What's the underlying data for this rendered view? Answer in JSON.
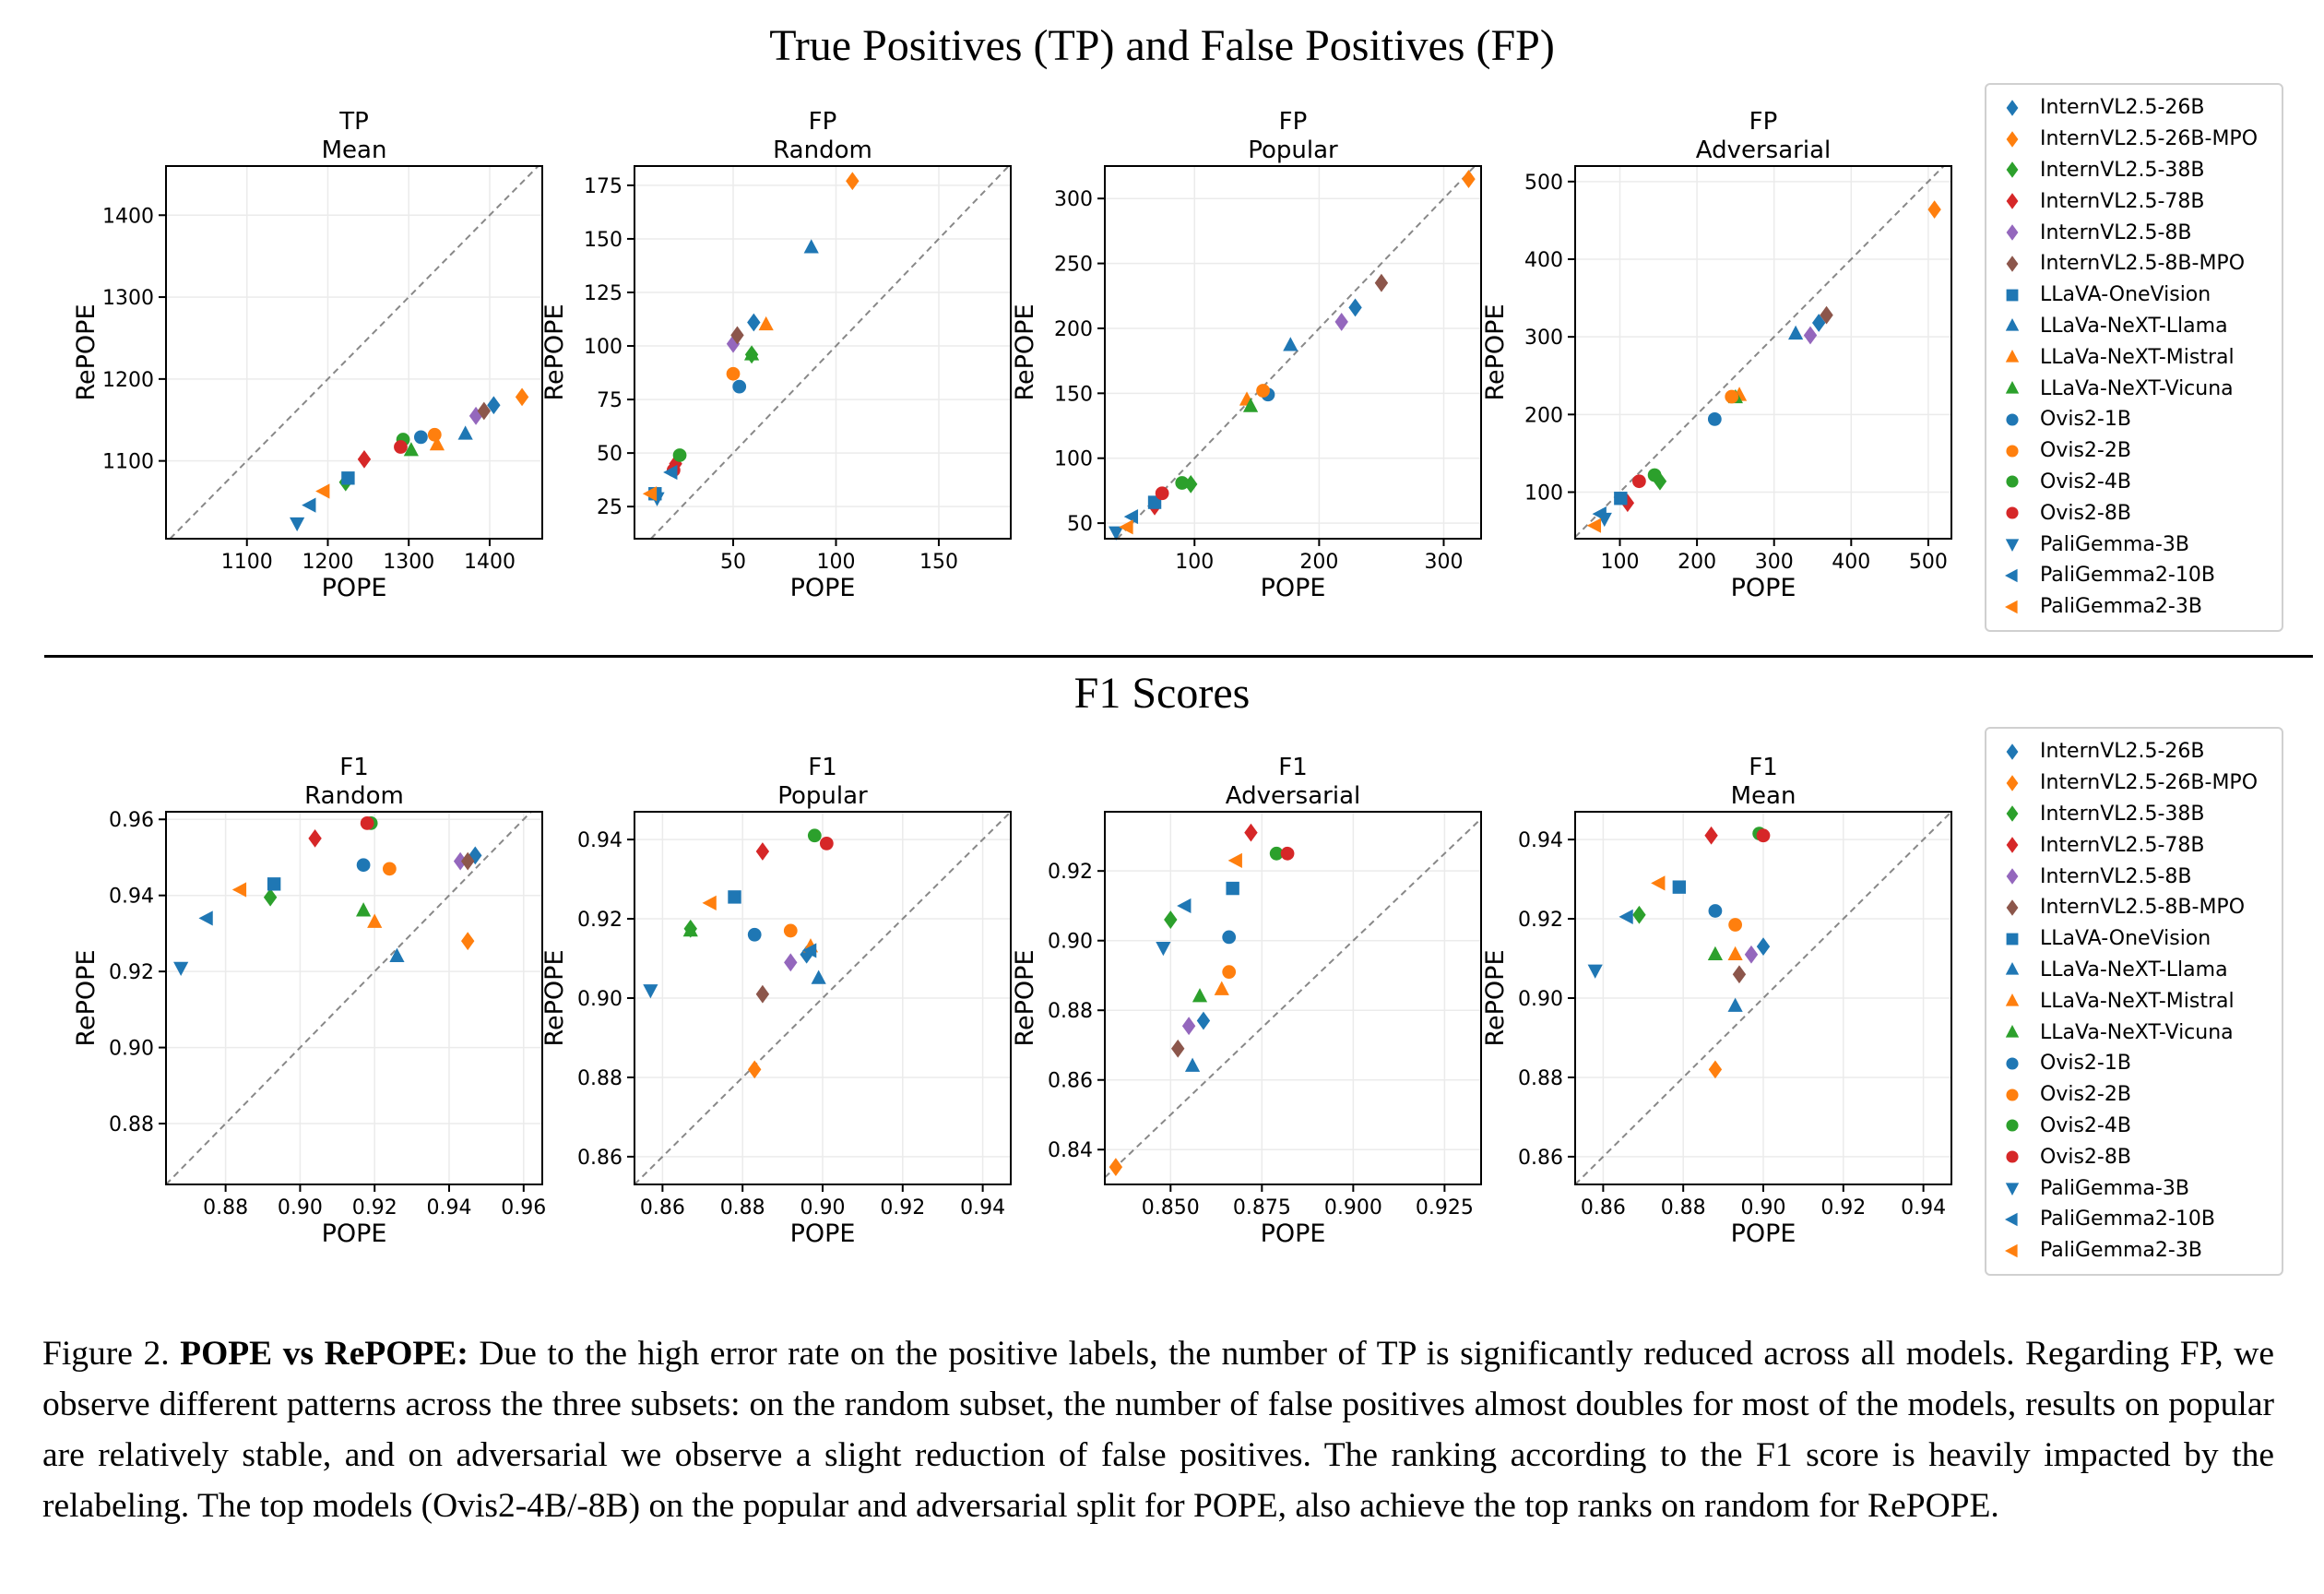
{
  "section_titles": {
    "top": "True Positives (TP) and False Positives (FP)",
    "bottom": "F1 Scores"
  },
  "caption": {
    "label": "Figure 2.",
    "bold": "POPE vs RePOPE:",
    "text": "Due to the high error rate on the positive labels, the number of TP is significantly reduced across all models. Regarding FP, we observe different patterns across the three subsets: on the random subset, the number of false positives almost doubles for most of the models, results on popular are relatively stable, and on adversarial we observe a slight reduction of false positives. The ranking according to the F1 score is heavily impacted by the relabeling. The top models (Ovis2-4B/-8B) on the popular and adversarial split for POPE, also achieve the top ranks on random for RePOPE."
  },
  "legend": [
    {
      "name": "InternVL2.5-26B",
      "color": "#1f77b4",
      "marker": "diamond"
    },
    {
      "name": "InternVL2.5-26B-MPO",
      "color": "#ff7f0e",
      "marker": "diamond"
    },
    {
      "name": "InternVL2.5-38B",
      "color": "#2ca02c",
      "marker": "diamond"
    },
    {
      "name": "InternVL2.5-78B",
      "color": "#d62728",
      "marker": "diamond"
    },
    {
      "name": "InternVL2.5-8B",
      "color": "#9467bd",
      "marker": "diamond"
    },
    {
      "name": "InternVL2.5-8B-MPO",
      "color": "#8c564b",
      "marker": "diamond"
    },
    {
      "name": "LLaVA-OneVision",
      "color": "#1f77b4",
      "marker": "square"
    },
    {
      "name": "LLaVa-NeXT-Llama",
      "color": "#1f77b4",
      "marker": "triangle-up"
    },
    {
      "name": "LLaVa-NeXT-Mistral",
      "color": "#ff7f0e",
      "marker": "triangle-up"
    },
    {
      "name": "LLaVa-NeXT-Vicuna",
      "color": "#2ca02c",
      "marker": "triangle-up"
    },
    {
      "name": "Ovis2-1B",
      "color": "#1f77b4",
      "marker": "circle"
    },
    {
      "name": "Ovis2-2B",
      "color": "#ff7f0e",
      "marker": "circle"
    },
    {
      "name": "Ovis2-4B",
      "color": "#2ca02c",
      "marker": "circle"
    },
    {
      "name": "Ovis2-8B",
      "color": "#d62728",
      "marker": "circle"
    },
    {
      "name": "PaliGemma-3B",
      "color": "#1f77b4",
      "marker": "triangle-down"
    },
    {
      "name": "PaliGemma2-10B",
      "color": "#1f77b4",
      "marker": "triangle-left"
    },
    {
      "name": "PaliGemma2-3B",
      "color": "#ff7f0e",
      "marker": "triangle-left"
    }
  ],
  "chart_data": [
    {
      "type": "scatter",
      "title": "TP",
      "subtitle": "Mean",
      "xlabel": "POPE",
      "ylabel": "RePOPE",
      "xlim": [
        1000,
        1465
      ],
      "ylim": [
        1005,
        1460
      ],
      "xticks": [
        1100,
        1200,
        1300,
        1400
      ],
      "yticks": [
        1100,
        1200,
        1300,
        1400
      ],
      "grid": true,
      "points": [
        {
          "x": 1405,
          "y": 1168
        },
        {
          "x": 1440,
          "y": 1178
        },
        {
          "x": 1222,
          "y": 1074
        },
        {
          "x": 1245,
          "y": 1102
        },
        {
          "x": 1383,
          "y": 1155
        },
        {
          "x": 1393,
          "y": 1161
        },
        {
          "x": 1225,
          "y": 1079
        },
        {
          "x": 1370,
          "y": 1133
        },
        {
          "x": 1335,
          "y": 1120
        },
        {
          "x": 1303,
          "y": 1113
        },
        {
          "x": 1315,
          "y": 1129
        },
        {
          "x": 1332,
          "y": 1132
        },
        {
          "x": 1293,
          "y": 1126
        },
        {
          "x": 1290,
          "y": 1117
        },
        {
          "x": 1162,
          "y": 1024
        },
        {
          "x": 1178,
          "y": 1046
        },
        {
          "x": 1195,
          "y": 1063
        }
      ]
    },
    {
      "type": "scatter",
      "title": "FP",
      "subtitle": "Random",
      "xlabel": "POPE",
      "ylabel": "RePOPE",
      "xlim": [
        2,
        185
      ],
      "ylim": [
        10,
        184
      ],
      "xticks": [
        50,
        100,
        150
      ],
      "yticks": [
        25,
        50,
        75,
        100,
        125,
        150,
        175
      ],
      "grid": true,
      "points": [
        {
          "x": 60,
          "y": 111
        },
        {
          "x": 108,
          "y": 177
        },
        {
          "x": 59,
          "y": 96
        },
        {
          "x": 22,
          "y": 45
        },
        {
          "x": 50,
          "y": 101
        },
        {
          "x": 52,
          "y": 105
        },
        {
          "x": 12,
          "y": 31
        },
        {
          "x": 88,
          "y": 146
        },
        {
          "x": 66,
          "y": 110
        },
        {
          "x": 59,
          "y": 96
        },
        {
          "x": 53,
          "y": 81
        },
        {
          "x": 50,
          "y": 87
        },
        {
          "x": 24,
          "y": 49
        },
        {
          "x": 21,
          "y": 42
        },
        {
          "x": 13,
          "y": 29
        },
        {
          "x": 20,
          "y": 41
        },
        {
          "x": 10,
          "y": 31
        }
      ]
    },
    {
      "type": "scatter",
      "title": "FP",
      "subtitle": "Popular",
      "xlabel": "POPE",
      "ylabel": "RePOPE",
      "xlim": [
        28,
        330
      ],
      "ylim": [
        38,
        325
      ],
      "xticks": [
        100,
        200,
        300
      ],
      "yticks": [
        50,
        100,
        150,
        200,
        250,
        300
      ],
      "grid": true,
      "points": [
        {
          "x": 229,
          "y": 216
        },
        {
          "x": 320,
          "y": 315
        },
        {
          "x": 97,
          "y": 80
        },
        {
          "x": 68,
          "y": 63
        },
        {
          "x": 218,
          "y": 205
        },
        {
          "x": 250,
          "y": 235
        },
        {
          "x": 68,
          "y": 66
        },
        {
          "x": 177,
          "y": 187
        },
        {
          "x": 142,
          "y": 145
        },
        {
          "x": 145,
          "y": 140
        },
        {
          "x": 159,
          "y": 149
        },
        {
          "x": 155,
          "y": 152
        },
        {
          "x": 90,
          "y": 81
        },
        {
          "x": 74,
          "y": 73
        },
        {
          "x": 37,
          "y": 43
        },
        {
          "x": 50,
          "y": 55
        },
        {
          "x": 46,
          "y": 47
        }
      ]
    },
    {
      "type": "scatter",
      "title": "FP",
      "subtitle": "Adversarial",
      "xlabel": "POPE",
      "ylabel": "RePOPE",
      "xlim": [
        42,
        530
      ],
      "ylim": [
        40,
        520
      ],
      "xticks": [
        100,
        200,
        300,
        400,
        500
      ],
      "yticks": [
        100,
        200,
        300,
        400,
        500
      ],
      "grid": true,
      "points": [
        {
          "x": 358,
          "y": 318
        },
        {
          "x": 508,
          "y": 464
        },
        {
          "x": 152,
          "y": 114
        },
        {
          "x": 110,
          "y": 86
        },
        {
          "x": 347,
          "y": 302
        },
        {
          "x": 368,
          "y": 328
        },
        {
          "x": 101,
          "y": 92
        },
        {
          "x": 328,
          "y": 304
        },
        {
          "x": 255,
          "y": 225
        },
        {
          "x": 250,
          "y": 222
        },
        {
          "x": 223,
          "y": 194
        },
        {
          "x": 245,
          "y": 223
        },
        {
          "x": 145,
          "y": 122
        },
        {
          "x": 125,
          "y": 114
        },
        {
          "x": 80,
          "y": 66
        },
        {
          "x": 75,
          "y": 72
        },
        {
          "x": 68,
          "y": 57
        }
      ]
    },
    {
      "type": "scatter",
      "title": "F1",
      "subtitle": "Random",
      "xlabel": "POPE",
      "ylabel": "RePOPE",
      "xlim": [
        0.864,
        0.965
      ],
      "ylim": [
        0.864,
        0.962
      ],
      "xticks": [
        0.88,
        0.9,
        0.92,
        0.94,
        0.96
      ],
      "yticks": [
        0.88,
        0.9,
        0.92,
        0.94,
        0.96
      ],
      "grid": true,
      "points": [
        {
          "x": 0.947,
          "y": 0.9505
        },
        {
          "x": 0.945,
          "y": 0.928
        },
        {
          "x": 0.892,
          "y": 0.9395
        },
        {
          "x": 0.904,
          "y": 0.955
        },
        {
          "x": 0.943,
          "y": 0.949
        },
        {
          "x": 0.945,
          "y": 0.949
        },
        {
          "x": 0.893,
          "y": 0.943
        },
        {
          "x": 0.926,
          "y": 0.924
        },
        {
          "x": 0.92,
          "y": 0.933
        },
        {
          "x": 0.917,
          "y": 0.936
        },
        {
          "x": 0.917,
          "y": 0.948
        },
        {
          "x": 0.924,
          "y": 0.947
        },
        {
          "x": 0.919,
          "y": 0.959
        },
        {
          "x": 0.918,
          "y": 0.959
        },
        {
          "x": 0.868,
          "y": 0.921
        },
        {
          "x": 0.875,
          "y": 0.934
        },
        {
          "x": 0.884,
          "y": 0.9415
        }
      ]
    },
    {
      "type": "scatter",
      "title": "F1",
      "subtitle": "Popular",
      "xlabel": "POPE",
      "ylabel": "RePOPE",
      "xlim": [
        0.853,
        0.947
      ],
      "ylim": [
        0.853,
        0.947
      ],
      "xticks": [
        0.86,
        0.88,
        0.9,
        0.92,
        0.94
      ],
      "yticks": [
        0.86,
        0.88,
        0.9,
        0.92,
        0.94
      ],
      "grid": true,
      "points": [
        {
          "x": 0.896,
          "y": 0.911
        },
        {
          "x": 0.883,
          "y": 0.882
        },
        {
          "x": 0.867,
          "y": 0.9175
        },
        {
          "x": 0.885,
          "y": 0.937
        },
        {
          "x": 0.892,
          "y": 0.909
        },
        {
          "x": 0.885,
          "y": 0.901
        },
        {
          "x": 0.878,
          "y": 0.9255
        },
        {
          "x": 0.899,
          "y": 0.905
        },
        {
          "x": 0.897,
          "y": 0.913
        },
        {
          "x": 0.867,
          "y": 0.917
        },
        {
          "x": 0.883,
          "y": 0.916
        },
        {
          "x": 0.892,
          "y": 0.917
        },
        {
          "x": 0.898,
          "y": 0.941
        },
        {
          "x": 0.901,
          "y": 0.939
        },
        {
          "x": 0.857,
          "y": 0.902
        },
        {
          "x": 0.897,
          "y": 0.912
        },
        {
          "x": 0.872,
          "y": 0.924
        }
      ]
    },
    {
      "type": "scatter",
      "title": "F1",
      "subtitle": "Adversarial",
      "xlabel": "POPE",
      "ylabel": "RePOPE",
      "xlim": [
        0.832,
        0.935
      ],
      "ylim": [
        0.83,
        0.937
      ],
      "xticks": [
        0.85,
        0.875,
        0.9,
        0.925
      ],
      "yticks": [
        0.84,
        0.86,
        0.88,
        0.9,
        0.92
      ],
      "grid": true,
      "points": [
        {
          "x": 0.859,
          "y": 0.877
        },
        {
          "x": 0.835,
          "y": 0.835
        },
        {
          "x": 0.85,
          "y": 0.906
        },
        {
          "x": 0.872,
          "y": 0.931
        },
        {
          "x": 0.855,
          "y": 0.8755
        },
        {
          "x": 0.852,
          "y": 0.869
        },
        {
          "x": 0.867,
          "y": 0.915
        },
        {
          "x": 0.856,
          "y": 0.864
        },
        {
          "x": 0.864,
          "y": 0.886
        },
        {
          "x": 0.858,
          "y": 0.884
        },
        {
          "x": 0.866,
          "y": 0.901
        },
        {
          "x": 0.866,
          "y": 0.891
        },
        {
          "x": 0.879,
          "y": 0.925
        },
        {
          "x": 0.882,
          "y": 0.925
        },
        {
          "x": 0.848,
          "y": 0.898
        },
        {
          "x": 0.854,
          "y": 0.91
        },
        {
          "x": 0.868,
          "y": 0.923
        }
      ]
    },
    {
      "type": "scatter",
      "title": "F1",
      "subtitle": "Mean",
      "xlabel": "POPE",
      "ylabel": "RePOPE",
      "xlim": [
        0.853,
        0.947
      ],
      "ylim": [
        0.853,
        0.947
      ],
      "xticks": [
        0.86,
        0.88,
        0.9,
        0.92,
        0.94
      ],
      "yticks": [
        0.86,
        0.88,
        0.9,
        0.92,
        0.94
      ],
      "grid": true,
      "points": [
        {
          "x": 0.9,
          "y": 0.913
        },
        {
          "x": 0.888,
          "y": 0.882
        },
        {
          "x": 0.869,
          "y": 0.921
        },
        {
          "x": 0.887,
          "y": 0.941
        },
        {
          "x": 0.897,
          "y": 0.911
        },
        {
          "x": 0.894,
          "y": 0.906
        },
        {
          "x": 0.879,
          "y": 0.928
        },
        {
          "x": 0.893,
          "y": 0.898
        },
        {
          "x": 0.893,
          "y": 0.911
        },
        {
          "x": 0.888,
          "y": 0.911
        },
        {
          "x": 0.888,
          "y": 0.922
        },
        {
          "x": 0.893,
          "y": 0.9185
        },
        {
          "x": 0.899,
          "y": 0.9415
        },
        {
          "x": 0.9,
          "y": 0.941
        },
        {
          "x": 0.858,
          "y": 0.907
        },
        {
          "x": 0.866,
          "y": 0.9205
        },
        {
          "x": 0.874,
          "y": 0.929
        }
      ]
    }
  ]
}
